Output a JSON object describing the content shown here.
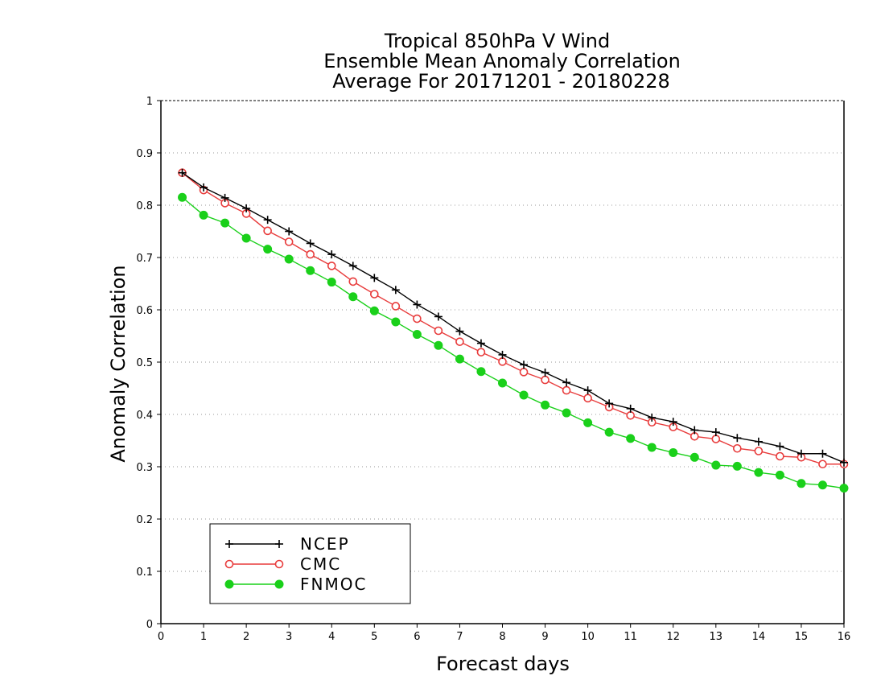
{
  "chart_data": {
    "type": "line",
    "title_lines": [
      "Tropical 850hPa V Wind",
      "Ensemble Mean Anomaly Correlation",
      "Average For 20171201 - 20180228"
    ],
    "xlabel": "Forecast days",
    "ylabel": "Anomaly Correlation",
    "xlim": [
      0,
      16
    ],
    "ylim": [
      0,
      1
    ],
    "xticks": [
      "0",
      "1",
      "2",
      "3",
      "4",
      "5",
      "6",
      "7",
      "8",
      "9",
      "10",
      "11",
      "12",
      "13",
      "14",
      "15",
      "16"
    ],
    "yticks": [
      "0",
      "0.1",
      "0.2",
      "0.3",
      "0.4",
      "0.5",
      "0.6",
      "0.7",
      "0.8",
      "0.9",
      "1"
    ],
    "grid": "dotted horizontal",
    "legend_position": "bottom-left",
    "x": [
      0.5,
      1,
      1.5,
      2,
      2.5,
      3,
      3.5,
      4,
      4.5,
      5,
      5.5,
      6,
      6.5,
      7,
      7.5,
      8,
      8.5,
      9,
      9.5,
      10,
      10.5,
      11,
      11.5,
      12,
      12.5,
      13,
      13.5,
      14,
      14.5,
      15,
      15.5,
      16
    ],
    "series": [
      {
        "name": "NCEP",
        "color": "#000000",
        "marker": "plus",
        "values": [
          0.862,
          0.834,
          0.814,
          0.794,
          0.772,
          0.75,
          0.727,
          0.706,
          0.684,
          0.661,
          0.638,
          0.61,
          0.587,
          0.559,
          0.536,
          0.514,
          0.495,
          0.48,
          0.461,
          0.446,
          0.421,
          0.411,
          0.394,
          0.386,
          0.37,
          0.366,
          0.355,
          0.348,
          0.339,
          0.325,
          0.325,
          0.308
        ]
      },
      {
        "name": "CMC",
        "color": "#e83c3c",
        "marker": "open-circle",
        "values": [
          0.862,
          0.829,
          0.804,
          0.784,
          0.751,
          0.73,
          0.706,
          0.684,
          0.654,
          0.63,
          0.607,
          0.583,
          0.56,
          0.539,
          0.519,
          0.501,
          0.481,
          0.466,
          0.446,
          0.431,
          0.414,
          0.398,
          0.385,
          0.376,
          0.358,
          0.353,
          0.335,
          0.33,
          0.32,
          0.318,
          0.305,
          0.305
        ]
      },
      {
        "name": "FNMOC",
        "color": "#1ad01a",
        "marker": "filled-circle",
        "values": [
          0.815,
          0.781,
          0.766,
          0.737,
          0.716,
          0.697,
          0.675,
          0.653,
          0.625,
          0.598,
          0.577,
          0.553,
          0.532,
          0.506,
          0.482,
          0.46,
          0.437,
          0.418,
          0.403,
          0.384,
          0.366,
          0.354,
          0.337,
          0.327,
          0.318,
          0.303,
          0.301,
          0.289,
          0.284,
          0.268,
          0.265,
          0.259
        ]
      }
    ]
  }
}
